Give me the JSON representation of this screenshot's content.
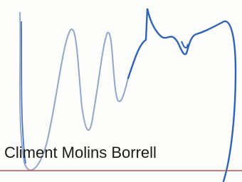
{
  "signature": {
    "name": "Climent Molins Borrell"
  }
}
